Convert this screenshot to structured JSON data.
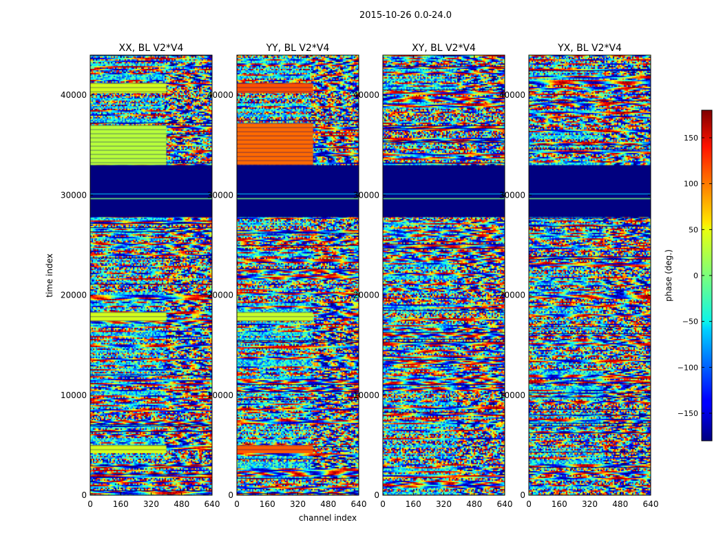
{
  "suptitle": "2015-10-26 0.0-24.0",
  "chart_data": {
    "type": "heatmap",
    "colormap": "jet",
    "xlabel": "channel index",
    "ylabel": "time index",
    "xlim": [
      0,
      640
    ],
    "ylim": [
      0,
      44000
    ],
    "x_ticks": [
      0,
      160,
      320,
      480,
      640
    ],
    "y_ticks": [
      0,
      10000,
      20000,
      30000,
      40000
    ],
    "panels": [
      {
        "title": "XX, BL V2*V4",
        "pol": "XX",
        "solid_bands": [
          [
            4200,
            5000,
            "#d4ff1c"
          ],
          [
            17400,
            18300,
            "#d4ff1c"
          ],
          [
            40200,
            41200,
            "#d4ff1c"
          ],
          [
            33000,
            37000,
            "#b8ff3a"
          ]
        ],
        "solid_xmax": 400
      },
      {
        "title": "YY, BL V2*V4",
        "pol": "YY",
        "solid_bands": [
          [
            4200,
            5000,
            "#ff5a00"
          ],
          [
            17400,
            18300,
            "#c8ff28"
          ],
          [
            40200,
            41200,
            "#ff5000"
          ],
          [
            33000,
            37200,
            "#ff6a00"
          ]
        ],
        "solid_xmax": 400
      },
      {
        "title": "XY, BL V2*V4",
        "pol": "XY",
        "solid_bands": [],
        "solid_xmax": 0
      },
      {
        "title": "YX, BL V2*V4",
        "pol": "YX",
        "solid_bands": [],
        "solid_xmax": 0
      }
    ],
    "blank_band": [
      27800,
      33000
    ],
    "colorbar": {
      "label": "phase (deg.)",
      "range": [
        -180,
        180
      ],
      "ticks": [
        -150,
        -100,
        -50,
        0,
        50,
        100,
        150
      ],
      "tick_labels": [
        "−150",
        "−100",
        "−50",
        "0",
        "50",
        "100",
        "150"
      ]
    },
    "panel_tick_labels": {
      "x": [
        "0",
        "160",
        "320",
        "480",
        "640"
      ],
      "y": [
        "0",
        "10000",
        "20000",
        "30000",
        "40000"
      ]
    }
  }
}
